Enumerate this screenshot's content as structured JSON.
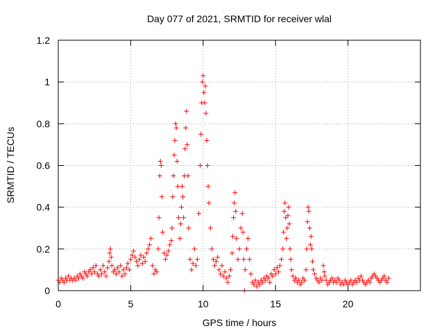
{
  "chart_data": {
    "type": "scatter",
    "title": "Day 077 of 2021, SRMTID for receiver wlal",
    "xlabel": "GPS time / hours",
    "ylabel": "SRMTID / TECUs",
    "xlim": [
      0,
      25
    ],
    "ylim": [
      0,
      1.2
    ],
    "xticks": [
      0,
      5,
      10,
      15,
      20
    ],
    "xtick_labels": [
      "0",
      "5",
      "10",
      "15",
      "20"
    ],
    "yticks": [
      0,
      0.2,
      0.4,
      0.6,
      0.8,
      1,
      1.2
    ],
    "ytick_labels": [
      "0",
      "0.2",
      "0.4",
      "0.6",
      "0.8",
      "1",
      "1.2"
    ],
    "grid": true,
    "marker": "plus",
    "color": "#ff0000",
    "series": [
      {
        "name": "SRMTID",
        "points": [
          [
            0.0,
            0.05
          ],
          [
            0.1,
            0.04
          ],
          [
            0.2,
            0.06
          ],
          [
            0.3,
            0.05
          ],
          [
            0.4,
            0.04
          ],
          [
            0.5,
            0.06
          ],
          [
            0.6,
            0.05
          ],
          [
            0.7,
            0.07
          ],
          [
            0.8,
            0.05
          ],
          [
            0.9,
            0.06
          ],
          [
            1.0,
            0.05
          ],
          [
            1.1,
            0.06
          ],
          [
            1.2,
            0.05
          ],
          [
            1.3,
            0.07
          ],
          [
            1.4,
            0.06
          ],
          [
            1.5,
            0.08
          ],
          [
            1.6,
            0.07
          ],
          [
            1.7,
            0.06
          ],
          [
            1.8,
            0.09
          ],
          [
            1.9,
            0.08
          ],
          [
            2.0,
            0.07
          ],
          [
            2.1,
            0.09
          ],
          [
            2.2,
            0.1
          ],
          [
            2.3,
            0.08
          ],
          [
            2.4,
            0.11
          ],
          [
            2.5,
            0.09
          ],
          [
            2.6,
            0.12
          ],
          [
            2.7,
            0.08
          ],
          [
            2.8,
            0.07
          ],
          [
            2.9,
            0.1
          ],
          [
            3.0,
            0.08
          ],
          [
            3.1,
            0.12
          ],
          [
            3.2,
            0.09
          ],
          [
            3.3,
            0.07
          ],
          [
            3.4,
            0.11
          ],
          [
            3.5,
            0.14
          ],
          [
            3.55,
            0.18
          ],
          [
            3.6,
            0.2
          ],
          [
            3.65,
            0.16
          ],
          [
            3.7,
            0.12
          ],
          [
            3.8,
            0.09
          ],
          [
            3.9,
            0.1
          ],
          [
            4.0,
            0.08
          ],
          [
            4.1,
            0.11
          ],
          [
            4.2,
            0.09
          ],
          [
            4.3,
            0.12
          ],
          [
            4.4,
            0.07
          ],
          [
            4.5,
            0.1
          ],
          [
            4.6,
            0.08
          ],
          [
            4.7,
            0.11
          ],
          [
            4.8,
            0.13
          ],
          [
            4.9,
            0.1
          ],
          [
            5.0,
            0.15
          ],
          [
            5.1,
            0.17
          ],
          [
            5.2,
            0.19
          ],
          [
            5.3,
            0.16
          ],
          [
            5.4,
            0.14
          ],
          [
            5.5,
            0.12
          ],
          [
            5.6,
            0.15
          ],
          [
            5.7,
            0.17
          ],
          [
            5.8,
            0.13
          ],
          [
            5.9,
            0.16
          ],
          [
            6.0,
            0.14
          ],
          [
            6.1,
            0.18
          ],
          [
            6.2,
            0.2
          ],
          [
            6.3,
            0.22
          ],
          [
            6.4,
            0.25
          ],
          [
            6.5,
            0.12
          ],
          [
            6.6,
            0.08
          ],
          [
            6.7,
            0.1
          ],
          [
            6.8,
            0.09
          ],
          [
            6.9,
            0.2
          ],
          [
            6.95,
            0.35
          ],
          [
            7.0,
            0.55
          ],
          [
            7.05,
            0.62
          ],
          [
            7.1,
            0.6
          ],
          [
            7.15,
            0.45
          ],
          [
            7.2,
            0.28
          ],
          [
            7.3,
            0.18
          ],
          [
            7.4,
            0.15
          ],
          [
            7.5,
            0.17
          ],
          [
            7.6,
            0.19
          ],
          [
            7.7,
            0.22
          ],
          [
            7.8,
            0.24
          ],
          [
            7.85,
            0.3
          ],
          [
            7.9,
            0.45
          ],
          [
            7.95,
            0.55
          ],
          [
            8.0,
            0.65
          ],
          [
            8.05,
            0.72
          ],
          [
            8.1,
            0.8
          ],
          [
            8.15,
            0.78
          ],
          [
            8.2,
            0.62
          ],
          [
            8.25,
            0.5
          ],
          [
            8.3,
            0.35
          ],
          [
            8.4,
            0.25
          ],
          [
            8.45,
            0.32
          ],
          [
            8.5,
            0.4
          ],
          [
            8.55,
            0.5
          ],
          [
            8.6,
            0.45
          ],
          [
            8.65,
            0.35
          ],
          [
            8.7,
            0.55
          ],
          [
            8.75,
            0.68
          ],
          [
            8.8,
            0.78
          ],
          [
            8.85,
            0.86
          ],
          [
            8.9,
            0.7
          ],
          [
            8.95,
            0.55
          ],
          [
            9.0,
            0.3
          ],
          [
            9.1,
            0.15
          ],
          [
            9.2,
            0.1
          ],
          [
            9.3,
            0.13
          ],
          [
            9.4,
            0.2
          ],
          [
            9.5,
            0.12
          ],
          [
            9.6,
            0.15
          ],
          [
            9.7,
            0.37
          ],
          [
            9.8,
            0.6
          ],
          [
            9.85,
            0.75
          ],
          [
            9.9,
            0.9
          ],
          [
            9.95,
            1.0
          ],
          [
            10.0,
            1.03
          ],
          [
            10.05,
            0.95
          ],
          [
            10.1,
            0.9
          ],
          [
            10.15,
            0.98
          ],
          [
            10.2,
            0.85
          ],
          [
            10.25,
            0.72
          ],
          [
            10.3,
            0.6
          ],
          [
            10.35,
            0.5
          ],
          [
            10.4,
            0.42
          ],
          [
            10.5,
            0.3
          ],
          [
            10.6,
            0.2
          ],
          [
            10.7,
            0.15
          ],
          [
            10.8,
            0.12
          ],
          [
            10.9,
            0.14
          ],
          [
            11.0,
            0.16
          ],
          [
            11.1,
            0.1
          ],
          [
            11.2,
            0.08
          ],
          [
            11.3,
            0.12
          ],
          [
            11.4,
            0.07
          ],
          [
            11.5,
            0.09
          ],
          [
            11.6,
            0.06
          ],
          [
            11.7,
            0.04
          ],
          [
            11.8,
            0.07
          ],
          [
            11.9,
            0.1
          ],
          [
            12.0,
            0.18
          ],
          [
            12.05,
            0.26
          ],
          [
            12.1,
            0.35
          ],
          [
            12.15,
            0.42
          ],
          [
            12.2,
            0.47
          ],
          [
            12.25,
            0.38
          ],
          [
            12.3,
            0.25
          ],
          [
            12.4,
            0.15
          ],
          [
            12.5,
            0.2
          ],
          [
            12.6,
            0.3
          ],
          [
            12.7,
            0.37
          ],
          [
            12.75,
            0.28
          ],
          [
            12.8,
            0.15
          ],
          [
            12.85,
            0.0
          ],
          [
            12.9,
            0.1
          ],
          [
            13.0,
            0.2
          ],
          [
            13.1,
            0.25
          ],
          [
            13.2,
            0.15
          ],
          [
            13.3,
            0.08
          ],
          [
            13.4,
            0.04
          ],
          [
            13.5,
            0.03
          ],
          [
            13.6,
            0.05
          ],
          [
            13.7,
            0.02
          ],
          [
            13.8,
            0.04
          ],
          [
            13.9,
            0.03
          ],
          [
            14.0,
            0.05
          ],
          [
            14.1,
            0.04
          ],
          [
            14.2,
            0.06
          ],
          [
            14.3,
            0.05
          ],
          [
            14.4,
            0.07
          ],
          [
            14.5,
            0.06
          ],
          [
            14.6,
            0.04
          ],
          [
            14.7,
            0.08
          ],
          [
            14.8,
            0.07
          ],
          [
            14.9,
            0.1
          ],
          [
            15.0,
            0.08
          ],
          [
            15.1,
            0.11
          ],
          [
            15.2,
            0.09
          ],
          [
            15.3,
            0.12
          ],
          [
            15.4,
            0.15
          ],
          [
            15.5,
            0.2
          ],
          [
            15.55,
            0.28
          ],
          [
            15.6,
            0.38
          ],
          [
            15.65,
            0.42
          ],
          [
            15.7,
            0.35
          ],
          [
            15.75,
            0.25
          ],
          [
            15.8,
            0.3
          ],
          [
            15.85,
            0.36
          ],
          [
            15.9,
            0.4
          ],
          [
            15.95,
            0.32
          ],
          [
            16.0,
            0.2
          ],
          [
            16.05,
            0.15
          ],
          [
            16.1,
            0.1
          ],
          [
            16.2,
            0.07
          ],
          [
            16.3,
            0.05
          ],
          [
            16.4,
            0.06
          ],
          [
            16.5,
            0.04
          ],
          [
            16.6,
            0.05
          ],
          [
            16.7,
            0.03
          ],
          [
            16.8,
            0.04
          ],
          [
            16.9,
            0.06
          ],
          [
            17.0,
            0.05
          ],
          [
            17.1,
            0.1
          ],
          [
            17.15,
            0.2
          ],
          [
            17.2,
            0.33
          ],
          [
            17.25,
            0.4
          ],
          [
            17.3,
            0.38
          ],
          [
            17.35,
            0.3
          ],
          [
            17.4,
            0.22
          ],
          [
            17.45,
            0.26
          ],
          [
            17.5,
            0.2
          ],
          [
            17.55,
            0.14
          ],
          [
            17.6,
            0.1
          ],
          [
            17.7,
            0.08
          ],
          [
            17.8,
            0.06
          ],
          [
            17.9,
            0.05
          ],
          [
            18.0,
            0.04
          ],
          [
            18.1,
            0.06
          ],
          [
            18.2,
            0.05
          ],
          [
            18.3,
            0.12
          ],
          [
            18.35,
            0.09
          ],
          [
            18.4,
            0.07
          ],
          [
            18.5,
            0.05
          ],
          [
            18.6,
            0.03
          ],
          [
            18.7,
            0.04
          ],
          [
            18.8,
            0.05
          ],
          [
            18.9,
            0.06
          ],
          [
            19.0,
            0.04
          ],
          [
            19.1,
            0.05
          ],
          [
            19.2,
            0.04
          ],
          [
            19.3,
            0.06
          ],
          [
            19.4,
            0.05
          ],
          [
            19.5,
            0.03
          ],
          [
            19.6,
            0.04
          ],
          [
            19.7,
            0.03
          ],
          [
            19.8,
            0.05
          ],
          [
            19.9,
            0.04
          ],
          [
            20.0,
            0.03
          ],
          [
            20.1,
            0.04
          ],
          [
            20.2,
            0.05
          ],
          [
            20.3,
            0.03
          ],
          [
            20.4,
            0.04
          ],
          [
            20.5,
            0.05
          ],
          [
            20.6,
            0.04
          ],
          [
            20.7,
            0.06
          ],
          [
            20.8,
            0.05
          ],
          [
            20.9,
            0.07
          ],
          [
            21.0,
            0.05
          ],
          [
            21.1,
            0.04
          ],
          [
            21.2,
            0.03
          ],
          [
            21.3,
            0.04
          ],
          [
            21.4,
            0.05
          ],
          [
            21.5,
            0.04
          ],
          [
            21.6,
            0.06
          ],
          [
            21.7,
            0.07
          ],
          [
            21.8,
            0.08
          ],
          [
            21.9,
            0.07
          ],
          [
            22.0,
            0.06
          ],
          [
            22.1,
            0.05
          ],
          [
            22.2,
            0.04
          ],
          [
            22.3,
            0.05
          ],
          [
            22.4,
            0.06
          ],
          [
            22.5,
            0.07
          ],
          [
            22.6,
            0.05
          ],
          [
            22.7,
            0.04
          ],
          [
            22.8,
            0.06
          ]
        ]
      }
    ]
  }
}
